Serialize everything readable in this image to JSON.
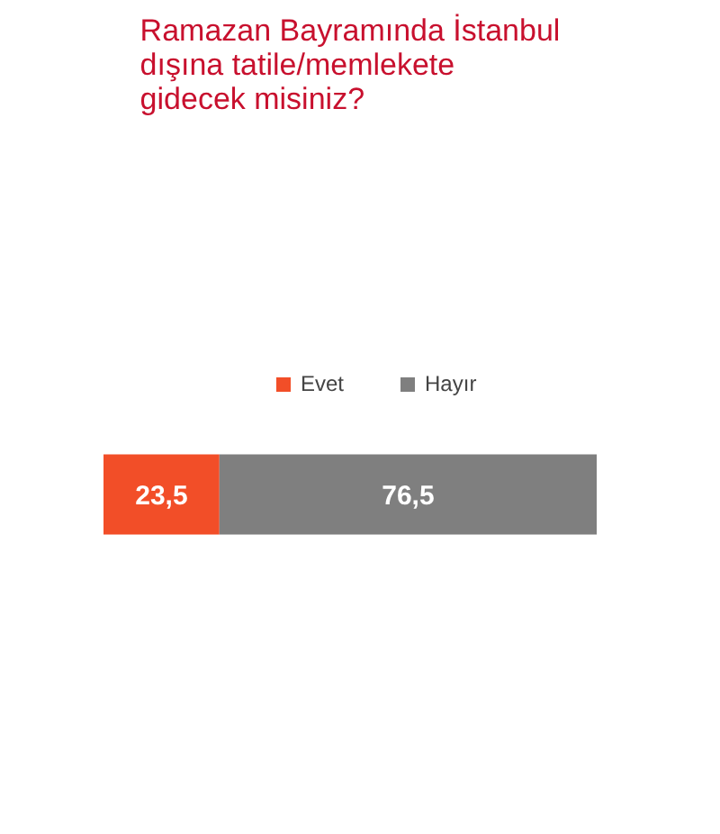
{
  "chart_data": {
    "type": "bar",
    "title": "Ramazan Bayramında İstanbul dışına tatile/memlekete gidecek misiniz?",
    "categories": [
      null
    ],
    "orientation": "horizontal",
    "stacked": true,
    "legend": "top",
    "series": [
      {
        "name": "Evet",
        "color": "#f24e28",
        "values": [
          23.5
        ],
        "value_labels": [
          "23,5"
        ]
      },
      {
        "name": "Hayır",
        "color": "#7f7f7f",
        "values": [
          76.5
        ],
        "value_labels": [
          "76,5"
        ]
      }
    ]
  }
}
